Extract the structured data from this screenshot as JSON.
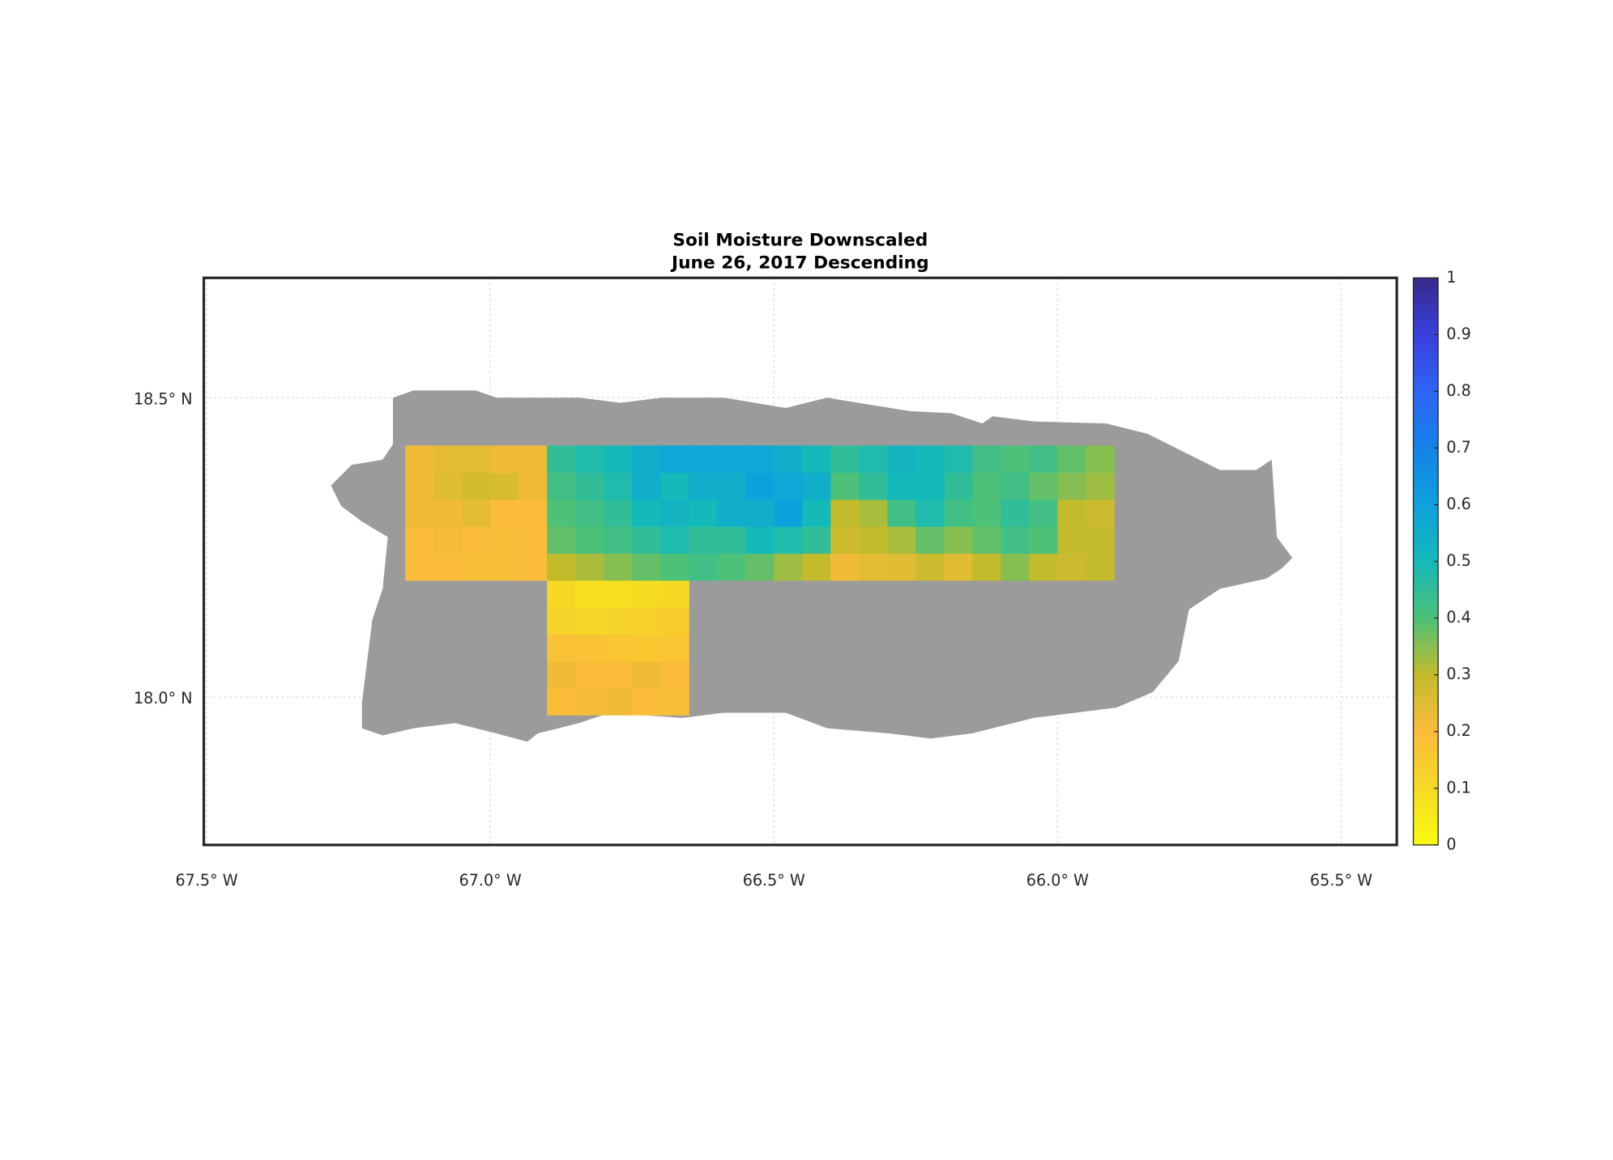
{
  "chart_data": {
    "type": "heatmap",
    "title": "Soil Moisture Downscaled",
    "subtitle": "June 26, 2017 Descending",
    "xlim": [
      -67.505,
      -65.402
    ],
    "ylim": [
      17.753,
      18.7
    ],
    "xticks": [
      {
        "value": -67.5,
        "label": "67.5° W"
      },
      {
        "value": -67.0,
        "label": "67.0° W"
      },
      {
        "value": -66.5,
        "label": "66.5° W"
      },
      {
        "value": -66.0,
        "label": "66.0° W"
      },
      {
        "value": -65.5,
        "label": "65.5° W"
      }
    ],
    "yticks": [
      {
        "value": 18.0,
        "label": "18.0° N"
      },
      {
        "value": 18.5,
        "label": "18.5° N"
      }
    ],
    "grid": true,
    "land_color": "#9b9b9b",
    "lon_edges": [
      -67.15,
      -67.1,
      -67.05,
      -67.0,
      -66.95,
      -66.9,
      -66.85,
      -66.8,
      -66.75,
      -66.7,
      -66.65,
      -66.6,
      -66.55,
      -66.5,
      -66.45,
      -66.4,
      -66.35,
      -66.3,
      -66.25,
      -66.2,
      -66.15,
      -66.1,
      -66.05,
      -66.0,
      -65.95,
      -65.9
    ],
    "lat_edges": [
      17.97,
      18.015,
      18.06,
      18.105,
      18.15,
      18.195,
      18.24,
      18.285,
      18.33,
      18.375,
      18.42
    ],
    "values": [
      [
        null,
        null,
        null,
        null,
        null,
        0.2,
        0.21,
        0.22,
        0.2,
        0.19,
        null,
        null,
        null,
        null,
        null,
        null,
        null,
        null,
        null,
        null,
        null,
        null,
        null,
        null,
        null
      ],
      [
        null,
        null,
        null,
        null,
        null,
        0.22,
        0.2,
        0.2,
        0.22,
        0.2,
        null,
        null,
        null,
        null,
        null,
        null,
        null,
        null,
        null,
        null,
        null,
        null,
        null,
        null,
        null
      ],
      [
        null,
        null,
        null,
        null,
        null,
        0.18,
        0.18,
        0.17,
        0.16,
        0.17,
        null,
        null,
        null,
        null,
        null,
        null,
        null,
        null,
        null,
        null,
        null,
        null,
        null,
        null,
        null
      ],
      [
        null,
        null,
        null,
        null,
        null,
        0.12,
        0.11,
        0.12,
        0.13,
        0.14,
        null,
        null,
        null,
        null,
        null,
        null,
        null,
        null,
        null,
        null,
        null,
        null,
        null,
        null,
        null
      ],
      [
        null,
        null,
        null,
        null,
        null,
        0.1,
        0.08,
        0.08,
        0.09,
        0.1,
        null,
        null,
        null,
        null,
        null,
        null,
        null,
        null,
        null,
        null,
        null,
        null,
        null,
        null,
        null
      ],
      [
        0.2,
        0.2,
        0.19,
        0.19,
        0.2,
        0.3,
        0.32,
        0.35,
        0.38,
        0.4,
        0.42,
        0.4,
        0.38,
        0.33,
        0.3,
        0.22,
        0.24,
        0.25,
        0.28,
        0.25,
        0.3,
        0.35,
        0.3,
        0.28,
        0.3
      ],
      [
        0.2,
        0.21,
        0.2,
        0.19,
        0.2,
        0.38,
        0.4,
        0.42,
        0.45,
        0.48,
        0.45,
        0.45,
        0.5,
        0.48,
        0.45,
        0.28,
        0.3,
        0.32,
        0.38,
        0.35,
        0.38,
        0.42,
        0.4,
        0.3,
        0.3
      ],
      [
        0.22,
        0.22,
        0.24,
        0.2,
        0.2,
        0.4,
        0.42,
        0.45,
        0.5,
        0.52,
        0.5,
        0.55,
        0.55,
        0.6,
        0.5,
        0.3,
        0.32,
        0.42,
        0.48,
        0.42,
        0.4,
        0.45,
        0.42,
        0.3,
        0.28
      ],
      [
        0.22,
        0.25,
        0.27,
        0.26,
        0.22,
        0.42,
        0.45,
        0.48,
        0.55,
        0.5,
        0.55,
        0.55,
        0.6,
        0.58,
        0.55,
        0.4,
        0.45,
        0.5,
        0.5,
        0.45,
        0.4,
        0.42,
        0.38,
        0.35,
        0.33
      ],
      [
        0.22,
        0.24,
        0.24,
        0.22,
        0.22,
        0.45,
        0.48,
        0.5,
        0.55,
        0.58,
        0.58,
        0.58,
        0.58,
        0.55,
        0.5,
        0.45,
        0.48,
        0.52,
        0.5,
        0.48,
        0.42,
        0.4,
        0.42,
        0.38,
        0.35
      ]
    ],
    "clim": [
      0,
      1
    ],
    "cticks": [
      0,
      0.1,
      0.2,
      0.3,
      0.4,
      0.5,
      0.6,
      0.7,
      0.8,
      0.9,
      1
    ],
    "colormap": [
      "#f9fb0e",
      "#f5d924",
      "#fbbc3a",
      "#c2bb2c",
      "#4cc177",
      "#14b9b9",
      "#0ea2dc",
      "#1482e8",
      "#2d64f6",
      "#3a3fdc",
      "#352a87"
    ]
  }
}
